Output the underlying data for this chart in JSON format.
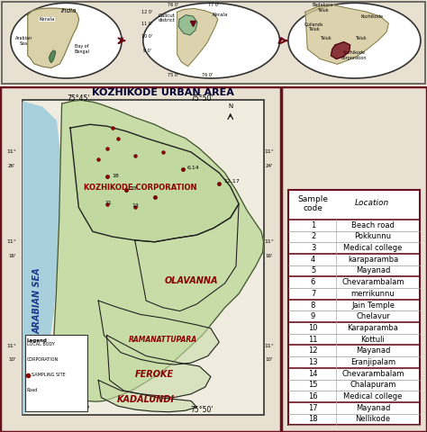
{
  "table_rows": [
    [
      "1",
      "Beach road"
    ],
    [
      "2",
      "Pokkunnu"
    ],
    [
      "3",
      "Medical college"
    ],
    [
      "4",
      "karaparamba"
    ],
    [
      "5",
      "Mayanad"
    ],
    [
      "6",
      "Chevarambalam"
    ],
    [
      "7",
      "merrikunnu"
    ],
    [
      "8",
      "Jain Temple"
    ],
    [
      "9",
      "Chelavur"
    ],
    [
      "10",
      "Karaparamba"
    ],
    [
      "11",
      "Kottuli"
    ],
    [
      "12",
      "Mayanad"
    ],
    [
      "13",
      "Eranjipalam"
    ],
    [
      "14",
      "Chevarambalam"
    ],
    [
      "15",
      "Chalapuram"
    ],
    [
      "16",
      "Medical college"
    ],
    [
      "17",
      "Mayanad"
    ],
    [
      "18",
      "Nellikode"
    ]
  ],
  "thick_line_after": [
    3,
    5,
    7,
    9,
    11,
    13,
    16
  ],
  "table_border_color": "#6b1020",
  "figsize": [
    4.74,
    4.8
  ],
  "dpi": 100,
  "bg_color": "#e8e0d0",
  "outer_border_color": "#6b1020",
  "map_border_color": "#333333",
  "land_color": "#c8dca8",
  "sea_color": "#a8d0dc",
  "cream_color": "#f0ede0",
  "region_tan": "#d4c488",
  "region_brown": "#c8a870",
  "corp_text_color": "#8B0000",
  "sea_text_color": "#1a3a8a"
}
